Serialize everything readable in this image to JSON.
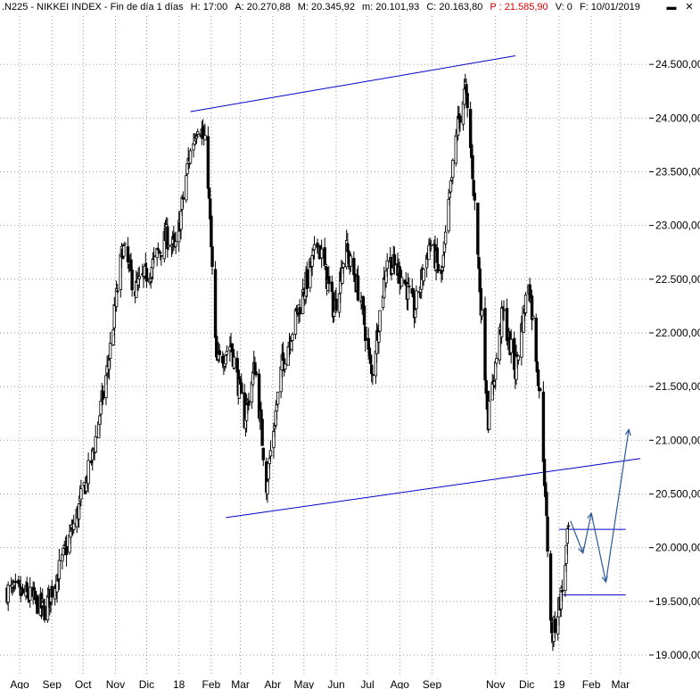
{
  "header": {
    "ticker": ".N225 - NIKKEI INDEX - Fin de día 1 días",
    "high": "H: 17:00",
    "open": "A: 20.270,88",
    "max": "M: 20.345,92",
    "min": "m: 20.101,93",
    "close": "C: 20.163,80",
    "p": "P : 21.585,90",
    "volume": "V: 0",
    "date": "F: 10/01/2019"
  },
  "window_controls": {
    "minimize": "▬",
    "close": "✕"
  },
  "colors": {
    "candles": "#000000",
    "trendlines": "#0000cc",
    "projection": "#2a5a9a",
    "grid": "#9a9a9a",
    "warning": "#e00000"
  },
  "chart_data": {
    "type": "candlestick",
    "x_tick_labels": [
      "Ago",
      "Sep",
      "Oct",
      "Nov",
      "Dic",
      "18",
      "Feb",
      "Mar",
      "Abr",
      "May",
      "Jun",
      "Jul",
      "Ago",
      "Sep",
      "Nov",
      "Dic",
      "19",
      "Feb",
      "Mar"
    ],
    "y_tick_labels": [
      "24.500,00",
      "24.000,00",
      "23.500,00",
      "23.000,00",
      "22.500,00",
      "22.000,00",
      "21.500,00",
      "21.000,00",
      "20.500,00",
      "20.000,00",
      "19.500,00",
      "19.000,00"
    ],
    "y_ticks": [
      24500,
      24000,
      23500,
      23000,
      22500,
      22000,
      21500,
      21000,
      20500,
      20000,
      19500,
      19000
    ],
    "ylim": [
      18850,
      24950
    ],
    "x_months": [
      "2017-08",
      "2017-09",
      "2017-10",
      "2017-11",
      "2017-12",
      "2018-01",
      "2018-02",
      "2018-03",
      "2018-04",
      "2018-05",
      "2018-06",
      "2018-07",
      "2018-08",
      "2018-09",
      "2018-11",
      "2018-12",
      "2019-01",
      "2019-02",
      "2019-03"
    ],
    "grid": true,
    "y_axis_position": "right",
    "close_path": [
      [
        "2017-07-20",
        19600
      ],
      [
        "2017-08-10",
        19550
      ],
      [
        "2017-08-25",
        19420
      ],
      [
        "2017-09-10",
        19850
      ],
      [
        "2017-09-25",
        20300
      ],
      [
        "2017-10-10",
        20850
      ],
      [
        "2017-10-25",
        21700
      ],
      [
        "2017-11-08",
        22800
      ],
      [
        "2017-11-20",
        22400
      ],
      [
        "2017-12-05",
        22600
      ],
      [
        "2017-12-20",
        22900
      ],
      [
        "2017-12-29",
        22770
      ],
      [
        "2018-01-10",
        23600
      ],
      [
        "2018-01-20",
        24000
      ],
      [
        "2018-01-28",
        23650
      ],
      [
        "2018-02-06",
        21700
      ],
      [
        "2018-02-20",
        21900
      ],
      [
        "2018-03-05",
        21200
      ],
      [
        "2018-03-15",
        21700
      ],
      [
        "2018-03-26",
        20600
      ],
      [
        "2018-04-10",
        21700
      ],
      [
        "2018-04-25",
        22200
      ],
      [
        "2018-05-15",
        22850
      ],
      [
        "2018-05-30",
        22200
      ],
      [
        "2018-06-10",
        22800
      ],
      [
        "2018-06-25",
        22300
      ],
      [
        "2018-07-05",
        21600
      ],
      [
        "2018-07-20",
        22700
      ],
      [
        "2018-08-05",
        22500
      ],
      [
        "2018-08-15",
        22200
      ],
      [
        "2018-08-30",
        22850
      ],
      [
        "2018-09-10",
        22500
      ],
      [
        "2018-09-25",
        23900
      ],
      [
        "2018-10-03",
        24270
      ],
      [
        "2018-10-10",
        23500
      ],
      [
        "2018-10-25",
        21200
      ],
      [
        "2018-11-08",
        22200
      ],
      [
        "2018-11-20",
        21650
      ],
      [
        "2018-12-03",
        22500
      ],
      [
        "2018-12-15",
        21300
      ],
      [
        "2018-12-25",
        19155
      ],
      [
        "2019-01-04",
        19600
      ],
      [
        "2019-01-10",
        20163
      ]
    ],
    "annotations": {
      "upper_trendline": [
        [
          "2018-01-12",
          24060
        ],
        [
          "2018-11-20",
          24580
        ]
      ],
      "lower_trendline": [
        [
          "2018-02-15",
          20280
        ],
        [
          "2019-03-20",
          20830
        ]
      ],
      "support_line_1": {
        "y": 20170,
        "from": "2019-01-01",
        "to": "2019-03-06"
      },
      "support_line_2": {
        "y": 19560,
        "from": "2019-01-01",
        "to": "2019-03-06"
      },
      "projection_arrow": [
        [
          "2019-01-12",
          20250
        ],
        [
          "2019-01-24",
          19950
        ],
        [
          "2019-02-01",
          20320
        ],
        [
          "2019-02-15",
          19680
        ],
        [
          "2019-03-09",
          21100
        ]
      ]
    }
  }
}
